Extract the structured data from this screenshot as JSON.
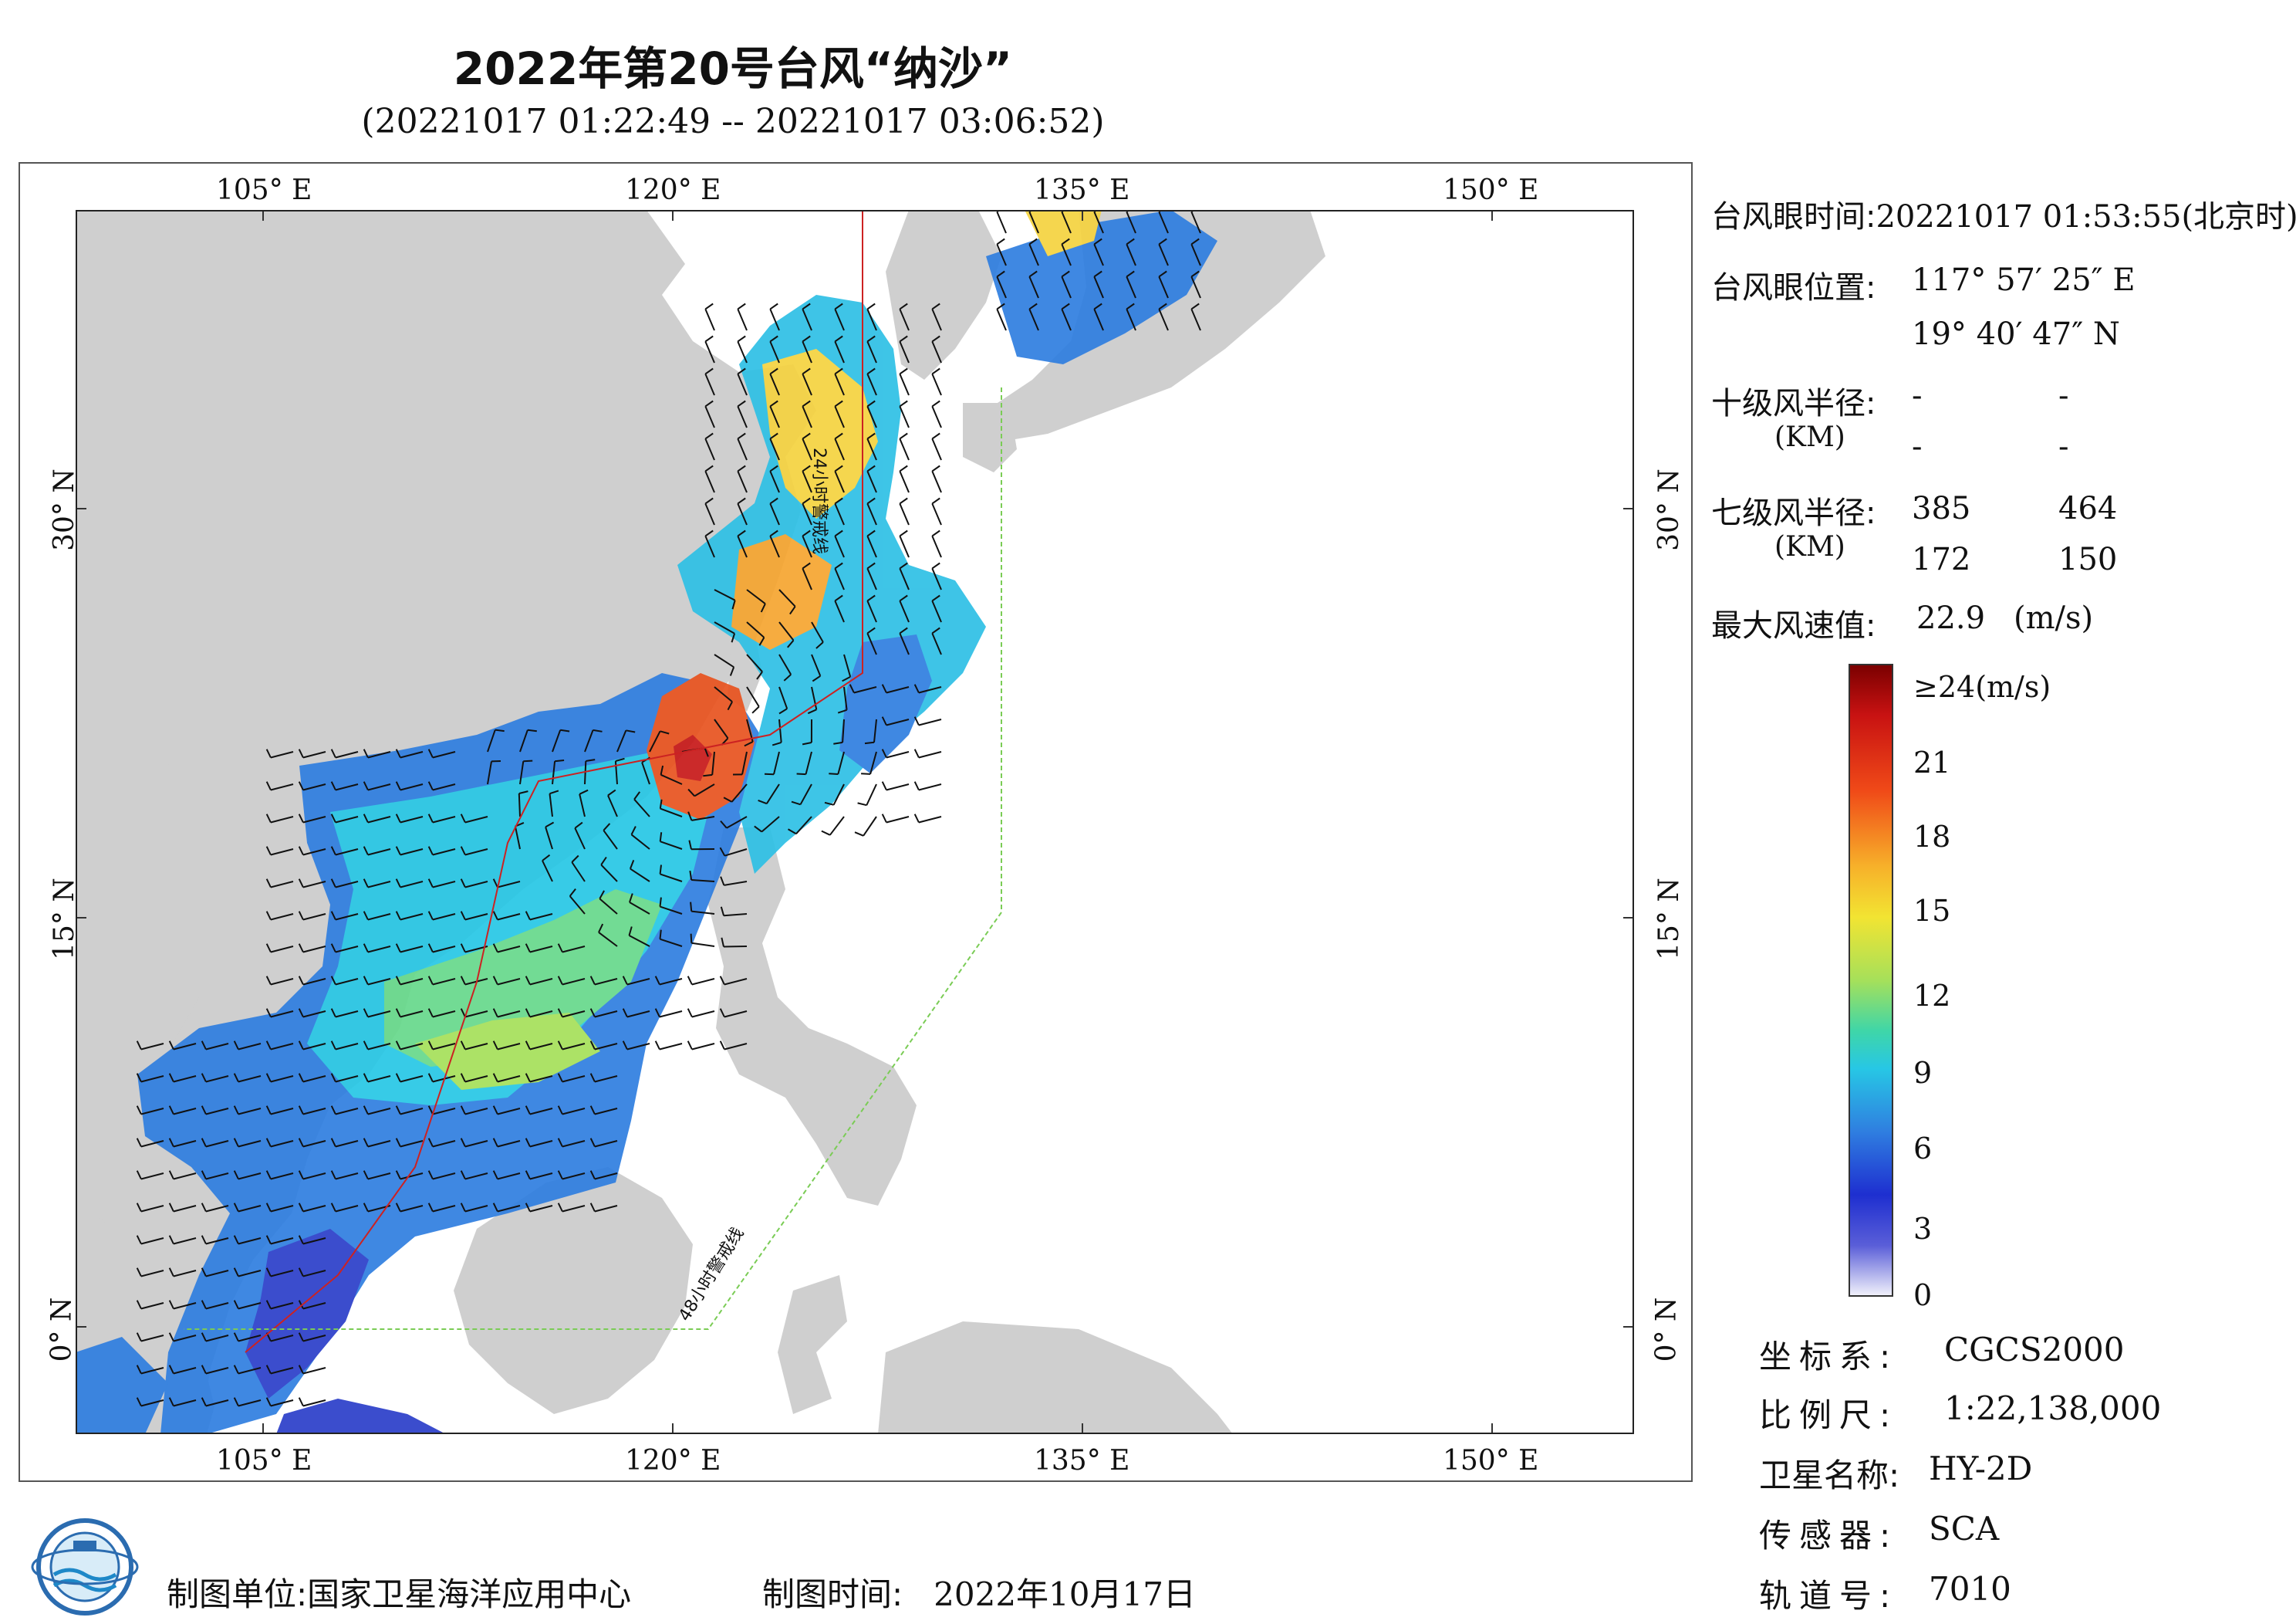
{
  "header": {
    "title": "2022年第20号台风“纳沙”",
    "subtitle": "(20221017 01:22:49 -- 20221017 03:06:52)"
  },
  "map": {
    "lon_labels": [
      "105° E",
      "120° E",
      "135° E",
      "150° E"
    ],
    "lat_labels": [
      "30° N",
      "15° N",
      "0° N"
    ],
    "warning_24h": "24小时警戒线",
    "warning_48h": "48小时警戒线",
    "colors": {
      "land": "#cfcfcf",
      "ocean": "#ffffff",
      "warning_24h": "#cc2222",
      "warning_48h": "#7acc55",
      "barb": "#111111"
    }
  },
  "info": {
    "eye_time_label": "台风眼时间:",
    "eye_time_value": "20221017 01:53:55(北京时)",
    "eye_pos_label": "台风眼位置:",
    "eye_lon": "117° 57′ 25″ E",
    "eye_lat": "19° 40′ 47″ N",
    "r10_label": "十级风半径:",
    "r10_unit": "(KM)",
    "r10_values": [
      "-",
      "-",
      "-",
      "-"
    ],
    "r7_label": "七级风半径:",
    "r7_unit": "(KM)",
    "r7_values": [
      "385",
      "464",
      "172",
      "150"
    ],
    "max_wind_label": "最大风速值:",
    "max_wind_value": "22.9",
    "max_wind_unit": "(m/s)"
  },
  "colorbar": {
    "ticks": [
      "≥24(m/s)",
      "21",
      "18",
      "15",
      "12",
      "9",
      "6",
      "3",
      "0"
    ]
  },
  "meta": {
    "crs_label": "坐标系:",
    "crs_value": "CGCS2000",
    "scale_label": "比例尺:",
    "scale_value": "1:22,138,000",
    "sat_label": "卫星名称:",
    "sat_value": "HY-2D",
    "sensor_label": "传感器:",
    "sensor_value": "SCA",
    "orbit_label": "轨道号:",
    "orbit_value": "7010"
  },
  "footer": {
    "producer_label": "制图单位:",
    "producer_value": "国家卫星海洋应用中心",
    "date_label": "制图时间:",
    "date_value": "2022年10月17日"
  }
}
